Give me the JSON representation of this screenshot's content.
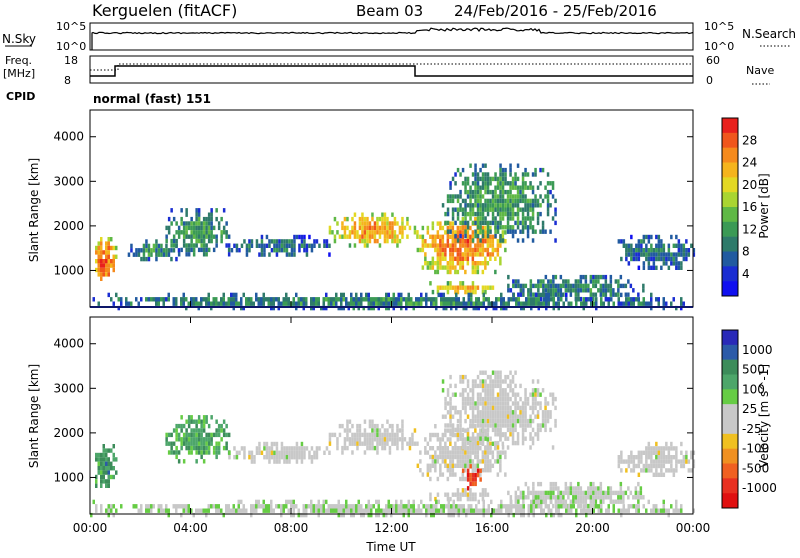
{
  "header": {
    "station": "Kerguelen (fitACF)",
    "beam": "Beam 03",
    "dates": "24/Feb/2016 - 25/Feb/2016"
  },
  "summary": {
    "nsky_label": "N.Sky",
    "nsearch_label": "N.Search",
    "nsky_ticks": [
      "10^5",
      "10^0"
    ],
    "nsearch_ticks": [
      "10^5",
      "10^0"
    ],
    "freq_label_line1": "Freq.",
    "freq_label_line2": "[MHz]",
    "freq_ticks": [
      "18",
      "8"
    ],
    "nave_label": "Nave",
    "nave_ticks": [
      "60",
      "0"
    ],
    "cpid_label": "CPID",
    "cpid_value": "normal (fast) 151"
  },
  "chart_data": [
    {
      "type": "heatmap",
      "name": "power",
      "ylabel": "Slant Range [km]",
      "yticks": [
        "4000",
        "3000",
        "2000",
        "1000"
      ],
      "yrange_km": [
        180,
        4600
      ],
      "xrange_hours": [
        0,
        24
      ],
      "colorbar": {
        "label": "Power [dB]",
        "ticks": [
          "28",
          "24",
          "20",
          "16",
          "12",
          "8",
          "4"
        ],
        "colors": [
          "#e8201c",
          "#f0561c",
          "#f58a1c",
          "#f5b41c",
          "#e3d823",
          "#a9d531",
          "#5fb845",
          "#3b9a55",
          "#2e7a6a",
          "#215aa0",
          "#1a2dd2",
          "#1010f0"
        ]
      },
      "regions": [
        {
          "t": [
            0.1,
            1.0
          ],
          "r": [
            800,
            1750
          ],
          "level": 0.8
        },
        {
          "t": [
            1.5,
            3.5
          ],
          "r": [
            1300,
            1700
          ],
          "level": 0.3
        },
        {
          "t": [
            3.0,
            5.5
          ],
          "r": [
            1400,
            2400
          ],
          "level": 0.35
        },
        {
          "t": [
            5.5,
            9.5
          ],
          "r": [
            1400,
            1800
          ],
          "level": 0.25
        },
        {
          "t": [
            9.5,
            13.0
          ],
          "r": [
            1600,
            2300
          ],
          "level": 0.7
        },
        {
          "t": [
            13.0,
            16.5
          ],
          "r": [
            1000,
            2200
          ],
          "level": 0.75
        },
        {
          "t": [
            14.0,
            18.5
          ],
          "r": [
            1700,
            3400
          ],
          "level": 0.35
        },
        {
          "t": [
            13.5,
            16.0
          ],
          "r": [
            520,
            760
          ],
          "level": 0.7
        },
        {
          "t": [
            16.5,
            22.0
          ],
          "r": [
            400,
            900
          ],
          "level": 0.3
        },
        {
          "t": [
            21.0,
            24.0
          ],
          "r": [
            1100,
            1800
          ],
          "level": 0.25
        },
        {
          "t": [
            0.0,
            24.0
          ],
          "r": [
            200,
            500
          ],
          "level": 0.3
        }
      ]
    },
    {
      "type": "heatmap",
      "name": "velocity",
      "ylabel": "Slant Range [km]",
      "yticks": [
        "4000",
        "3000",
        "2000",
        "1000"
      ],
      "yrange_km": [
        180,
        4600
      ],
      "xrange_hours": [
        0,
        24
      ],
      "colorbar": {
        "label": "Velocity [m s^-1]",
        "ticks": [
          "1000",
          "500",
          "100",
          "25",
          "-25",
          "-100",
          "-500",
          "-1000"
        ],
        "colors": [
          "#2929b8",
          "#2b5aa8",
          "#3c8c5a",
          "#4da66a",
          "#66cc44",
          "#c8c8c8",
          "#c8c8c8",
          "#f0c020",
          "#f09020",
          "#f06020",
          "#e83020",
          "#e01010"
        ]
      },
      "regions": [
        {
          "t": [
            0.1,
            1.0
          ],
          "r": [
            800,
            1750
          ],
          "vel": 0.25
        },
        {
          "t": [
            3.0,
            5.5
          ],
          "r": [
            1400,
            2400
          ],
          "vel": 0.3
        },
        {
          "t": [
            5.5,
            9.5
          ],
          "r": [
            1400,
            1800
          ],
          "vel": 0.5
        },
        {
          "t": [
            9.5,
            13.0
          ],
          "r": [
            1600,
            2300
          ],
          "vel": 0.5
        },
        {
          "t": [
            13.0,
            16.5
          ],
          "r": [
            1000,
            2200
          ],
          "vel": 0.5
        },
        {
          "t": [
            14.8,
            15.5
          ],
          "r": [
            800,
            1300
          ],
          "vel": 0.85
        },
        {
          "t": [
            14.0,
            18.5
          ],
          "r": [
            1700,
            3400
          ],
          "vel": 0.5
        },
        {
          "t": [
            13.5,
            16.0
          ],
          "r": [
            520,
            760
          ],
          "vel": 0.5
        },
        {
          "t": [
            16.5,
            22.0
          ],
          "r": [
            400,
            900
          ],
          "vel": 0.45
        },
        {
          "t": [
            21.0,
            24.0
          ],
          "r": [
            1100,
            1800
          ],
          "vel": 0.5
        },
        {
          "t": [
            0.0,
            24.0
          ],
          "r": [
            200,
            500
          ],
          "vel": 0.45
        }
      ]
    }
  ],
  "time_axis": {
    "ticks": [
      "00:00",
      "04:00",
      "08:00",
      "12:00",
      "16:00",
      "20:00",
      "00:00"
    ],
    "label": "Time UT"
  }
}
